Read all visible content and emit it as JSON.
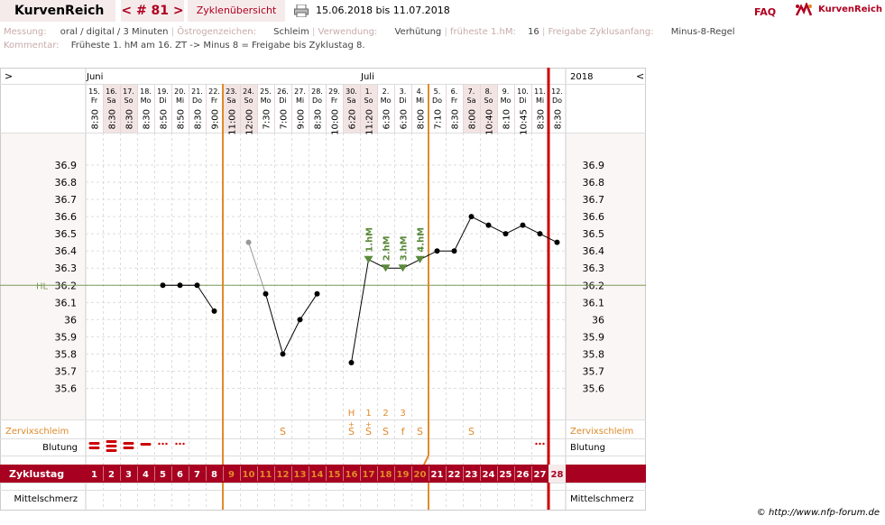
{
  "header": {
    "brand": "KurvenReich",
    "cycle_nav": "< # 81 >",
    "overview_label": "Zyklenübersicht",
    "date_range": "15.06.2018 bis 11.07.2018",
    "faq": "FAQ",
    "logo_text": "KurvenReich"
  },
  "info": {
    "messung_label": "Messung:",
    "messung_value": "oral / digital / 3 Minuten",
    "oestrogen_label": "Östrogenzeichen:",
    "oestrogen_value": "Schleim",
    "verwendung_label": "Verwendung:",
    "verwendung_value": "Verhütung",
    "fhm_label": "früheste 1.hM:",
    "fhm_value": "16",
    "freigabe_label": "Freigabe Zyklusanfang:",
    "freigabe_value": "Minus-8-Regel",
    "kommentar_label": "Kommentar:",
    "kommentar_value": "Früheste 1. hM am 16. ZT -> Minus 8 = Freigabe bis Zyklustag 8."
  },
  "chart_nav": {
    "left": ">",
    "right": "<"
  },
  "months": [
    {
      "label": "Juni"
    },
    {
      "label": "Juli"
    }
  ],
  "year_label": "2018",
  "days": [
    {
      "date": "15.",
      "wd": "Fr",
      "time": "8:30",
      "we": false
    },
    {
      "date": "16.",
      "wd": "Sa",
      "time": "8:30",
      "we": true
    },
    {
      "date": "17.",
      "wd": "So",
      "time": "8:30",
      "we": true
    },
    {
      "date": "18.",
      "wd": "Mo",
      "time": "8:30",
      "we": false
    },
    {
      "date": "19.",
      "wd": "Di",
      "time": "8:50",
      "we": false
    },
    {
      "date": "20.",
      "wd": "Mi",
      "time": "8:50",
      "we": false
    },
    {
      "date": "21.",
      "wd": "Do",
      "time": "8:30",
      "we": false
    },
    {
      "date": "22.",
      "wd": "Fr",
      "time": "9:00",
      "we": false
    },
    {
      "date": "23.",
      "wd": "Sa",
      "time": "11:00",
      "we": true
    },
    {
      "date": "24.",
      "wd": "So",
      "time": "12:00",
      "we": true
    },
    {
      "date": "25.",
      "wd": "Mo",
      "time": "7:30",
      "we": false
    },
    {
      "date": "26.",
      "wd": "Di",
      "time": "7:00",
      "we": false
    },
    {
      "date": "27.",
      "wd": "Mi",
      "time": "9:00",
      "we": false
    },
    {
      "date": "28.",
      "wd": "Do",
      "time": "8:30",
      "we": false
    },
    {
      "date": "29.",
      "wd": "Fr",
      "time": "10:00",
      "we": false
    },
    {
      "date": "30.",
      "wd": "Sa",
      "time": "6:20",
      "we": true
    },
    {
      "date": "1.",
      "wd": "So",
      "time": "11:20",
      "we": true
    },
    {
      "date": "2.",
      "wd": "Mo",
      "time": "6:30",
      "we": false
    },
    {
      "date": "3.",
      "wd": "Di",
      "time": "6:30",
      "we": false
    },
    {
      "date": "4.",
      "wd": "Mi",
      "time": "8:00",
      "we": false
    },
    {
      "date": "5.",
      "wd": "Do",
      "time": "7:10",
      "we": false
    },
    {
      "date": "6.",
      "wd": "Fr",
      "time": "8:30",
      "we": false
    },
    {
      "date": "7.",
      "wd": "Sa",
      "time": "8:00",
      "we": true
    },
    {
      "date": "8.",
      "wd": "So",
      "time": "10:40",
      "we": true
    },
    {
      "date": "9.",
      "wd": "Mo",
      "time": "8:10",
      "we": false
    },
    {
      "date": "10.",
      "wd": "Di",
      "time": "10:45",
      "we": false
    },
    {
      "date": "11.",
      "wd": "Mi",
      "time": "8:30",
      "we": false
    },
    {
      "date": "12.",
      "wd": "Do",
      "time": "8:30",
      "we": false
    }
  ],
  "y_tick_labels": [
    "36.9",
    "36.8",
    "36.7",
    "36.6",
    "36.5",
    "36.4",
    "36.3",
    "36.2",
    "36.1",
    "36",
    "35.9",
    "35.8",
    "35.7",
    "35.6"
  ],
  "hl_label": "HL",
  "markers": [
    "1.hM",
    "2.hM",
    "3.hM",
    "4.hM"
  ],
  "rows": {
    "zervix_label": "Zervixschleim",
    "blutung_label": "Blutung",
    "zyklustag_label": "Zyklustag",
    "mittelschmerz_label": "Mittelschmerz"
  },
  "peak_codes": [
    "H",
    "1",
    "2",
    "3"
  ],
  "zervix_codes": [
    {
      "day": 12,
      "code": "S"
    },
    {
      "day": 16,
      "code": "S"
    },
    {
      "day": 17,
      "code": "S"
    },
    {
      "day": 18,
      "code": "S"
    },
    {
      "day": 19,
      "code": "f"
    },
    {
      "day": 20,
      "code": "S"
    },
    {
      "day": 23,
      "code": "S"
    }
  ],
  "blutung": [
    {
      "day": 1,
      "level": "stark"
    },
    {
      "day": 2,
      "level": "sehr stark"
    },
    {
      "day": 3,
      "level": "stark"
    },
    {
      "day": 4,
      "level": "mittel"
    },
    {
      "day": 5,
      "level": "schmierblutung"
    },
    {
      "day": 6,
      "level": "schmierblutung"
    },
    {
      "day": 27,
      "level": "schmierblutung"
    }
  ],
  "cycle_days": [
    "1",
    "2",
    "3",
    "4",
    "5",
    "6",
    "7",
    "8",
    "9",
    "10",
    "11",
    "12",
    "13",
    "14",
    "15",
    "16",
    "17",
    "18",
    "19",
    "20",
    "21",
    "22",
    "23",
    "24",
    "25",
    "26",
    "27",
    "28"
  ],
  "footer": "© http://www.nfp-forum.de",
  "colors": {
    "brand": "#b00020",
    "orange": "#e08a2a",
    "green": "#5a8a3a",
    "coverline": "#7a9a5a"
  },
  "chart_data": {
    "type": "line",
    "x_cycle_days": [
      1,
      2,
      3,
      4,
      5,
      6,
      7,
      8,
      9,
      10,
      11,
      12,
      13,
      14,
      15,
      16,
      17,
      18,
      19,
      20,
      21,
      22,
      23,
      24,
      25,
      26,
      27,
      28
    ],
    "series": [
      {
        "values": [
          null,
          null,
          null,
          null,
          36.2,
          36.2,
          36.2,
          36.05,
          null,
          36.45,
          36.15,
          35.8,
          36.0,
          36.15,
          null,
          35.75,
          36.35,
          36.3,
          36.3,
          36.35,
          36.4,
          36.4,
          36.6,
          36.55,
          36.5,
          36.55,
          36.5,
          36.45
        ]
      }
    ],
    "excluded_day": 10,
    "coverline": 36.2,
    "high_measurements": [
      {
        "day": 17,
        "label": "1.hM"
      },
      {
        "day": 18,
        "label": "2.hM"
      },
      {
        "day": 19,
        "label": "3.hM"
      },
      {
        "day": 20,
        "label": "4.hM"
      }
    ],
    "ylim": [
      35.5,
      37.0
    ],
    "grid": true
  }
}
